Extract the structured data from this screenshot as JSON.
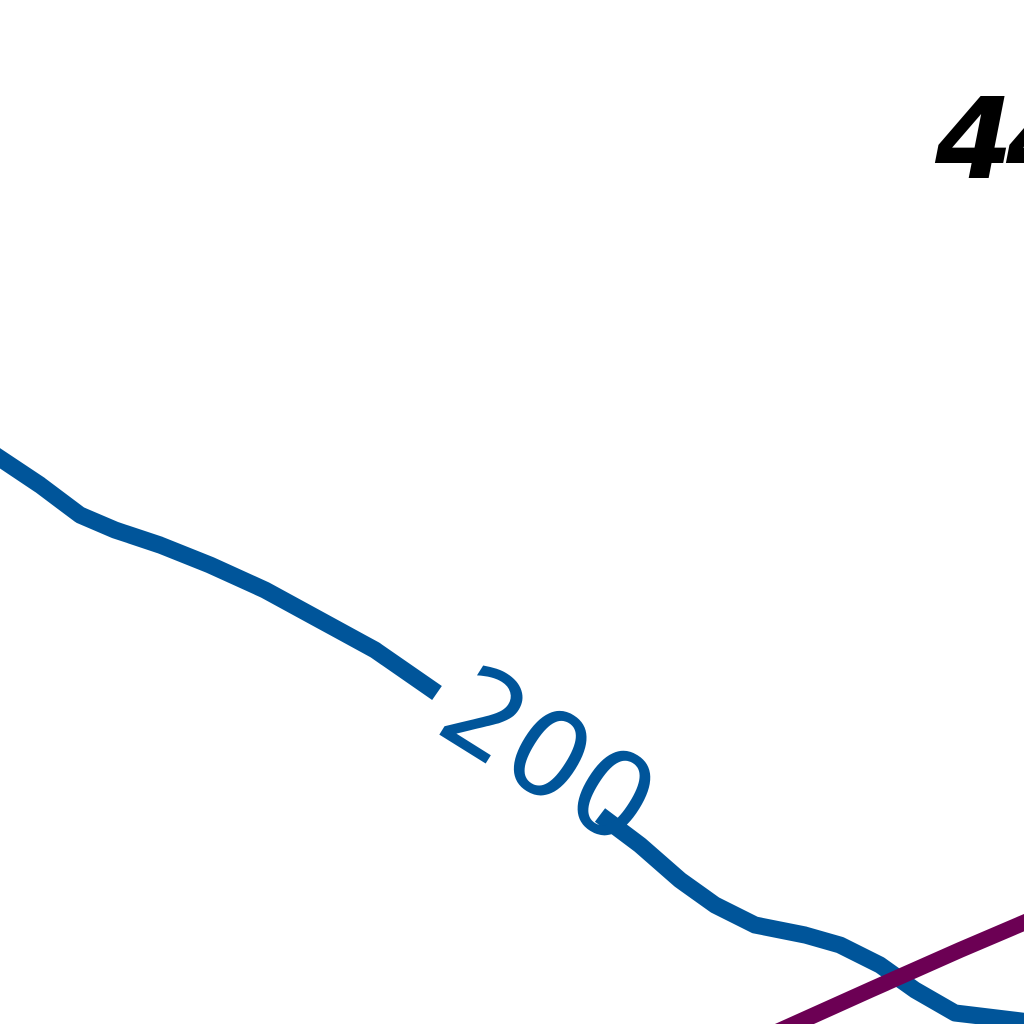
{
  "map": {
    "contour_label": "200",
    "corner_label": "4",
    "colors": {
      "contour_line": "#00559a",
      "route_line": "#6c0054",
      "corner_text": "#000000",
      "background": "#ffffff"
    }
  }
}
